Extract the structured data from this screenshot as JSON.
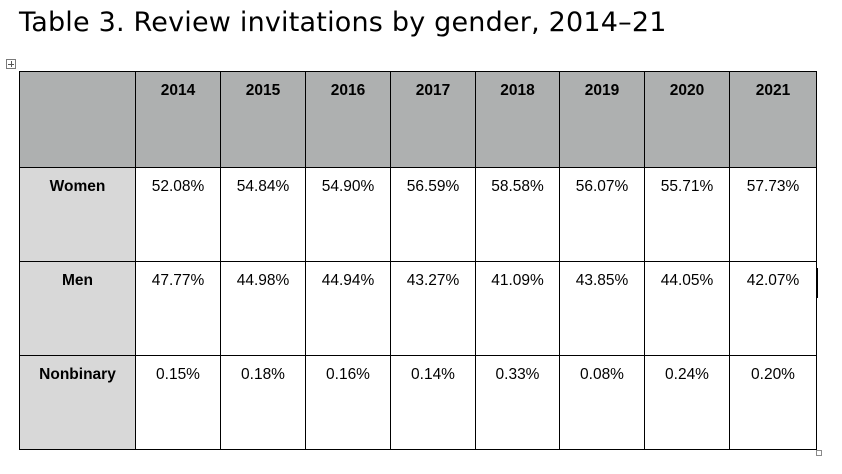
{
  "title": "Table 3. Review invitations by gender, 2014–21",
  "table": {
    "columns": [
      "2014",
      "2015",
      "2016",
      "2017",
      "2018",
      "2019",
      "2020",
      "2021"
    ],
    "rows": [
      {
        "label": "Women",
        "values": [
          "52.08%",
          "54.84%",
          "54.90%",
          "56.59%",
          "58.58%",
          "56.07%",
          "55.71%",
          "57.73%"
        ]
      },
      {
        "label": "Men",
        "values": [
          "47.77%",
          "44.98%",
          "44.94%",
          "43.27%",
          "41.09%",
          "43.85%",
          "44.05%",
          "42.07%"
        ]
      },
      {
        "label": "Nonbinary",
        "values": [
          "0.15%",
          "0.18%",
          "0.16%",
          "0.14%",
          "0.33%",
          "0.08%",
          "0.24%",
          "0.20%"
        ]
      }
    ]
  },
  "colors": {
    "header_fill": "#aeb0b0",
    "row_label_fill": "#d8d8d8",
    "border": "#000000"
  },
  "icons": {
    "table_move_handle": "move-cross-icon",
    "table_resize_handle": "resize-square-icon"
  }
}
